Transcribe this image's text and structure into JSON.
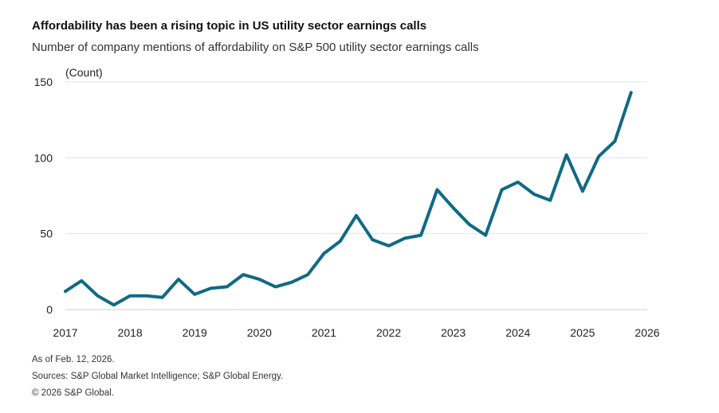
{
  "title": "Affordability has been a rising topic in US utility sector earnings calls",
  "subtitle": "Number of company mentions of affordability on S&P 500 utility sector earnings calls",
  "footer": {
    "note": "As of Feb. 12, 2026.",
    "sources": "Sources: S&P Global Market Intelligence; S&P Global Energy.",
    "copyright": "© 2026 S&P Global."
  },
  "chart_data": {
    "type": "line",
    "ylabel": "(Count)",
    "ylim": [
      0,
      150
    ],
    "yticks": [
      0,
      50,
      100,
      150
    ],
    "xlim": [
      2017,
      2026
    ],
    "xticks": [
      "2017",
      "2018",
      "2019",
      "2020",
      "2021",
      "2022",
      "2023",
      "2024",
      "2025",
      "2026"
    ],
    "grid": true,
    "series_color": "#0f6a84",
    "series": [
      {
        "x": [
          2017.0,
          2017.25,
          2017.5,
          2017.75,
          2018.0,
          2018.25,
          2018.5,
          2018.75,
          2019.0,
          2019.25,
          2019.5,
          2019.75,
          2020.0,
          2020.25,
          2020.5,
          2020.75,
          2021.0,
          2021.25,
          2021.5,
          2021.75,
          2022.0,
          2022.25,
          2022.5,
          2022.75,
          2023.0,
          2023.25,
          2023.5,
          2023.75,
          2024.0,
          2024.25,
          2024.5,
          2024.75,
          2025.0,
          2025.25,
          2025.5,
          2025.75
        ],
        "values": [
          12,
          19,
          9,
          3,
          9,
          9,
          8,
          20,
          10,
          14,
          15,
          23,
          20,
          15,
          18,
          23,
          37,
          45,
          62,
          46,
          42,
          47,
          49,
          79,
          67,
          56,
          49,
          79,
          84,
          76,
          72,
          102,
          78,
          101,
          111,
          143
        ]
      }
    ]
  }
}
